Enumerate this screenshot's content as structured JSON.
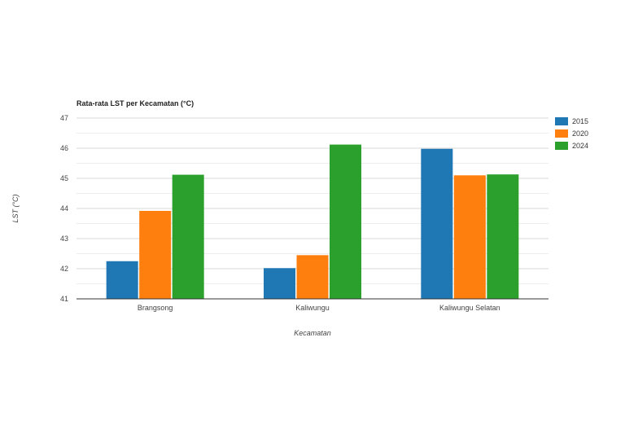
{
  "chart_data": {
    "type": "bar",
    "title": "Rata-rata LST per Kecamatan (°C)",
    "xlabel": "Kecamatan",
    "ylabel": "LST (°C)",
    "categories": [
      "Brangsong",
      "Kaliwungu",
      "Kaliwungu Selatan"
    ],
    "series": [
      {
        "name": "2015",
        "color": "#1f77b4",
        "values": [
          42.25,
          42.02,
          45.98
        ]
      },
      {
        "name": "2020",
        "color": "#ff7f0e",
        "values": [
          43.92,
          42.45,
          45.1
        ]
      },
      {
        "name": "2024",
        "color": "#2ca02c",
        "values": [
          45.12,
          46.12,
          45.13
        ]
      }
    ],
    "ylim": [
      41,
      47
    ],
    "yticks": [
      41,
      42,
      43,
      44,
      45,
      46,
      47
    ],
    "grid": true,
    "legend_position": "right"
  }
}
